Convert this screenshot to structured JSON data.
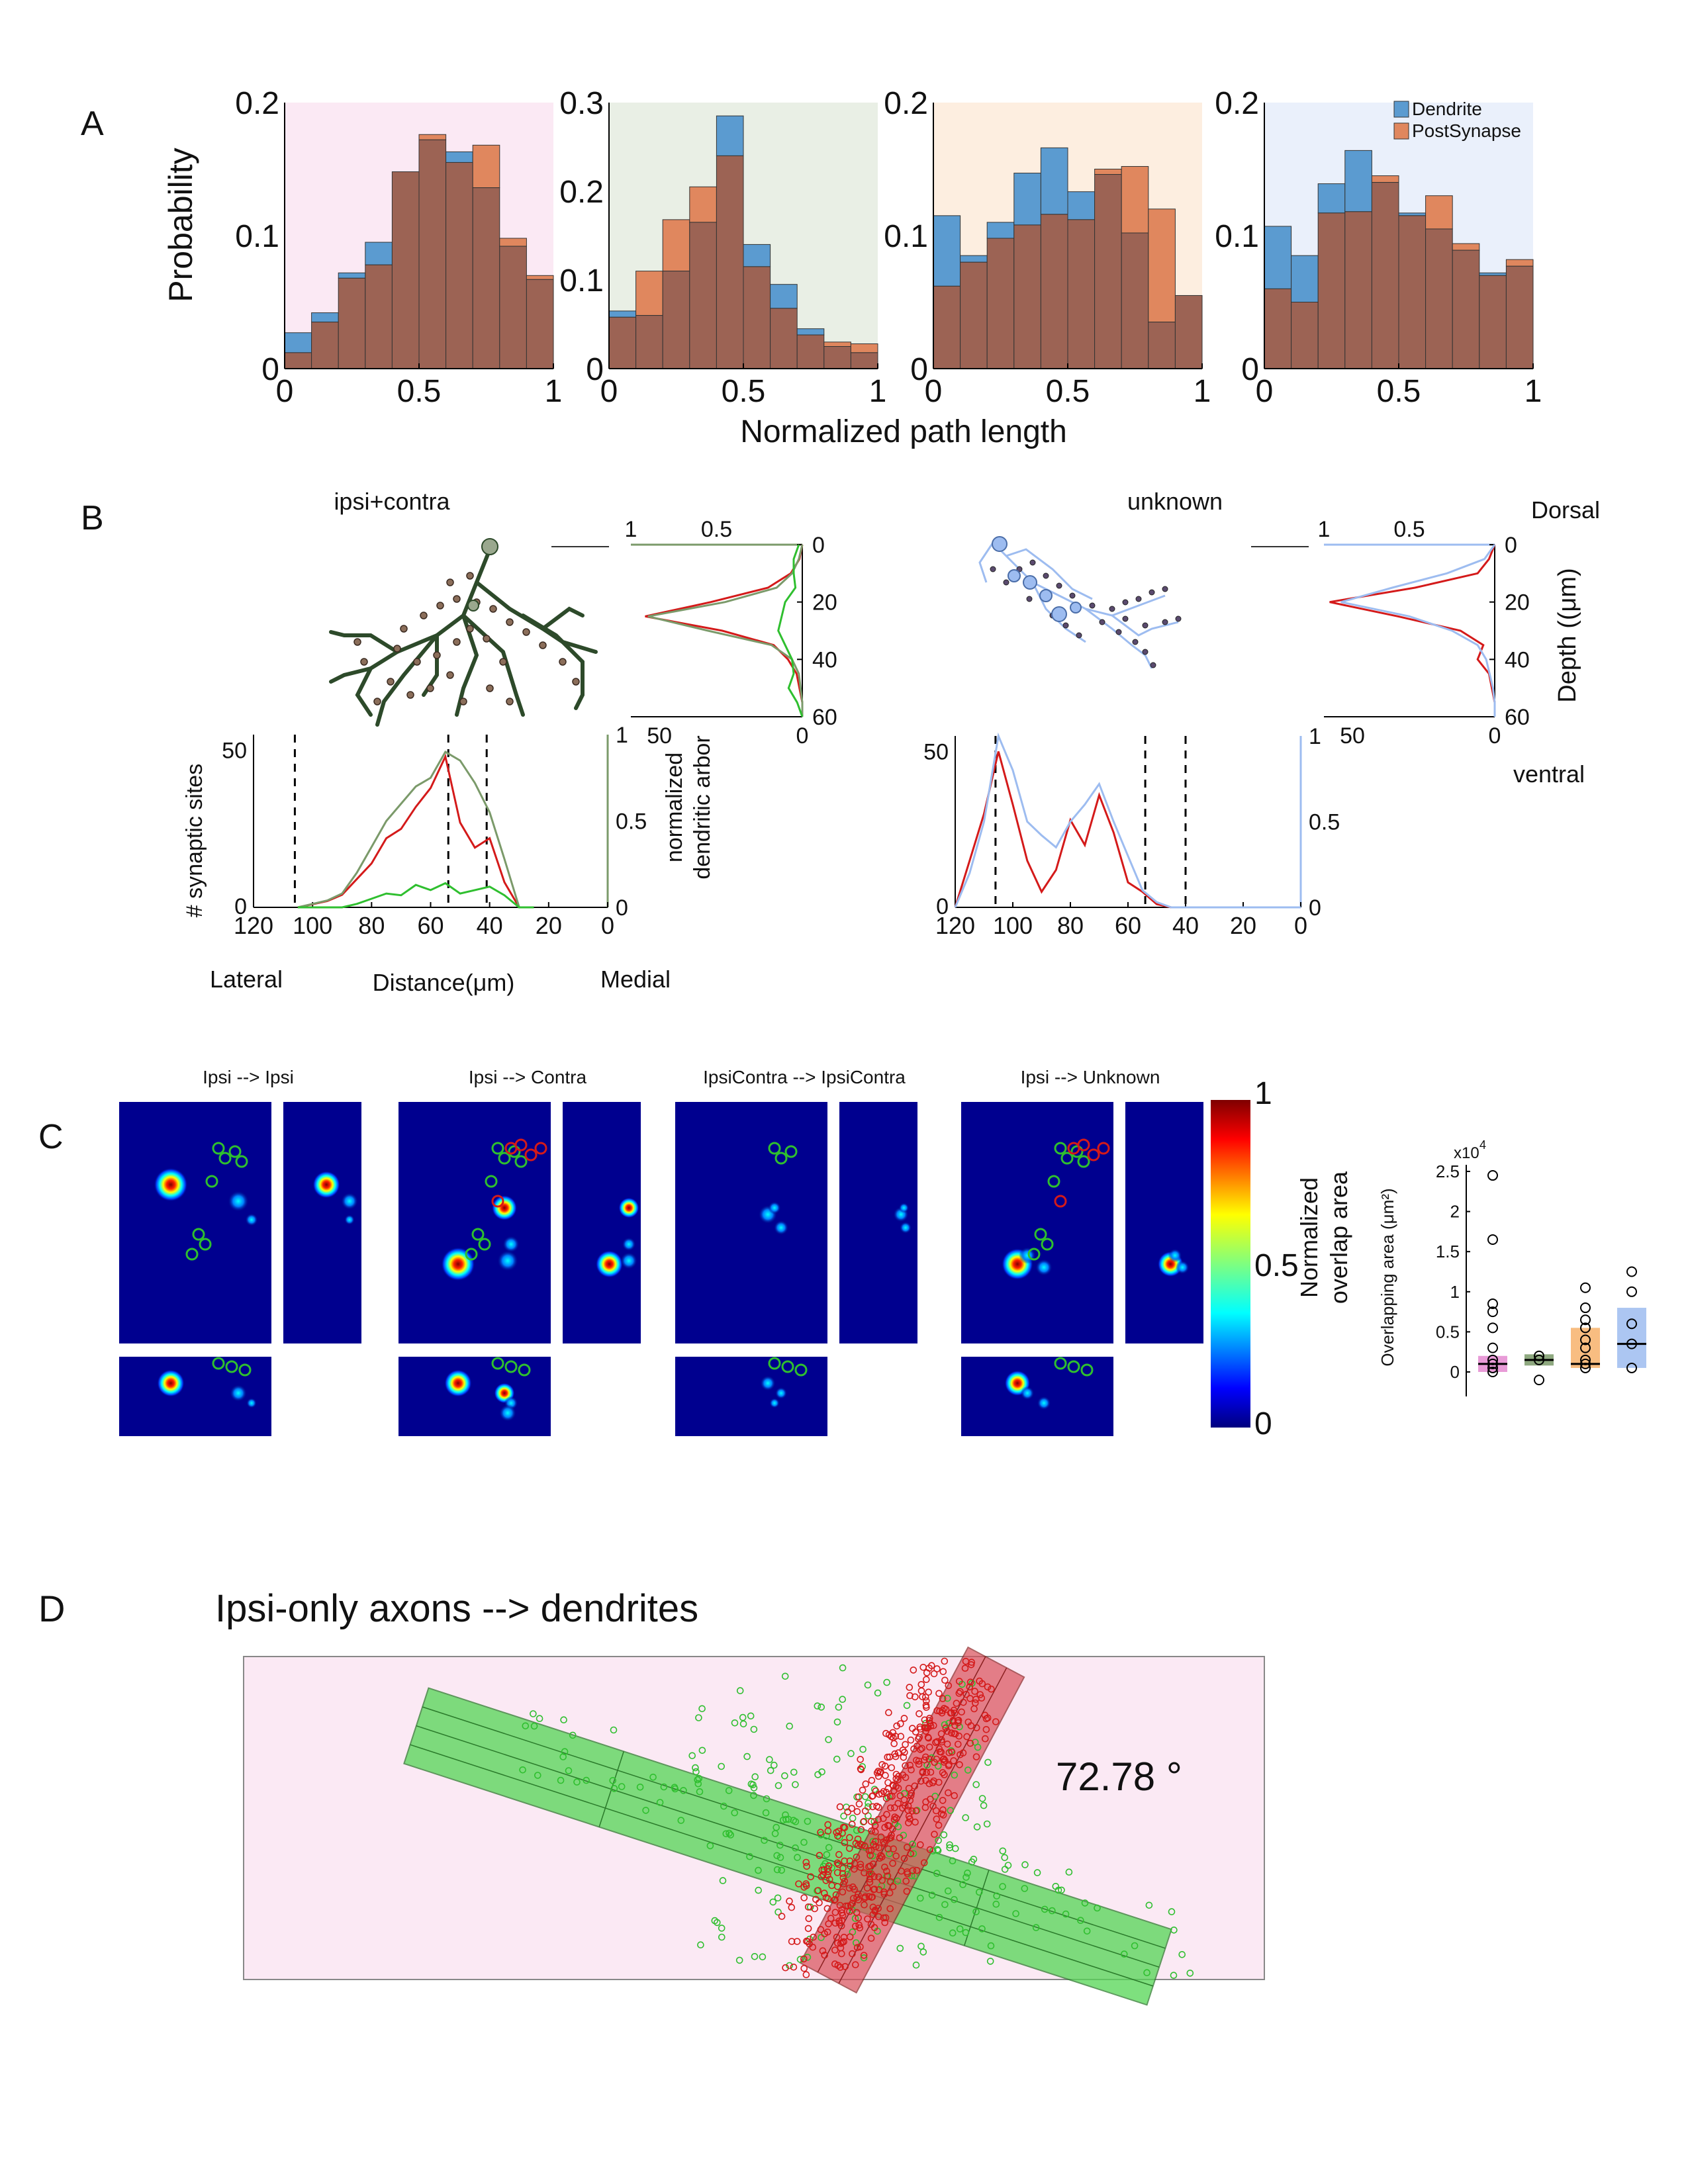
{
  "colors": {
    "dendrite": "#5b9bd0",
    "postsynapse": "#e0875e",
    "overlap": "#9c6354",
    "bg_pink": "#fbe9f4",
    "bg_green": "#e9efe5",
    "bg_orange": "#fdeee0",
    "bg_blue": "#eaf0fb",
    "red": "#d41a1a",
    "green": "#2fbf2f",
    "lightblue": "#9dbcf0",
    "olive": "#7b9a6a"
  },
  "panelA": {
    "label": "A",
    "ylabel": "Probability",
    "xlabel": "Normalized path length",
    "legend": [
      "Dendrite",
      "PostSynapse"
    ]
  },
  "panelB": {
    "label": "B",
    "left_title": "ipsi+contra",
    "right_title": "unknown",
    "dorsal": "Dorsal",
    "ventral": "ventral",
    "depth_label": "Depth ((μm)",
    "ylabel_left": "# synaptic sites",
    "ylabel_right_1": "normalized",
    "ylabel_right_2": "dendritic arbor",
    "lateral": "Lateral",
    "medial": "Medial",
    "distance": "Distance(μm)"
  },
  "panelC": {
    "label": "C",
    "titles": [
      "Ipsi --> Ipsi",
      "Ipsi --> Contra",
      "IpsiContra --> IpsiContra",
      "Ipsi -->  Unknown"
    ],
    "colorbar_label_1": "Normalized",
    "colorbar_label_2": "overlap area",
    "colorbar_ticks": [
      "1",
      "0.5",
      "0"
    ],
    "box_ylabel": "Overlapping area (μm²)",
    "box_multiplier": "x10",
    "box_exponent": "4",
    "box_ticks": [
      "2.5",
      "2",
      "1.5",
      "1",
      "0.5",
      "0"
    ]
  },
  "panelD": {
    "label": "D",
    "title": "Ipsi-only axons --> dendrites",
    "angle": "72.78 °"
  },
  "chart_data": [
    {
      "type": "bar",
      "panel": "A1",
      "x": [
        0.05,
        0.15,
        0.25,
        0.35,
        0.45,
        0.55,
        0.65,
        0.75,
        0.85,
        0.95
      ],
      "series": [
        {
          "name": "Dendrite",
          "values": [
            0.027,
            0.042,
            0.072,
            0.095,
            0.148,
            0.172,
            0.163,
            0.136,
            0.092,
            0.067
          ]
        },
        {
          "name": "PostSynapse",
          "values": [
            0.012,
            0.035,
            0.068,
            0.078,
            0.148,
            0.176,
            0.155,
            0.168,
            0.098,
            0.07
          ]
        }
      ],
      "xlim": [
        0,
        1
      ],
      "ylim": [
        0,
        0.2
      ],
      "xticks": [
        "0",
        "0.5",
        "1"
      ],
      "yticks": [
        "0",
        "0.1",
        "0.2"
      ],
      "bg": "#fbe9f4"
    },
    {
      "type": "bar",
      "panel": "A2",
      "x": [
        0.05,
        0.15,
        0.25,
        0.35,
        0.45,
        0.55,
        0.65,
        0.75,
        0.85,
        0.95
      ],
      "series": [
        {
          "name": "Dendrite",
          "values": [
            0.065,
            0.06,
            0.11,
            0.165,
            0.285,
            0.14,
            0.095,
            0.045,
            0.025,
            0.018
          ]
        },
        {
          "name": "PostSynapse",
          "values": [
            0.058,
            0.11,
            0.168,
            0.205,
            0.24,
            0.115,
            0.068,
            0.038,
            0.03,
            0.028
          ]
        }
      ],
      "xlim": [
        0,
        1
      ],
      "ylim": [
        0,
        0.3
      ],
      "xticks": [
        "0",
        "0.5",
        "1"
      ],
      "yticks": [
        "0",
        "0.1",
        "0.2",
        "0.3"
      ],
      "bg": "#e9efe5"
    },
    {
      "type": "bar",
      "panel": "A3",
      "x": [
        0.05,
        0.15,
        0.25,
        0.35,
        0.45,
        0.55,
        0.65,
        0.75,
        0.85,
        0.95
      ],
      "series": [
        {
          "name": "Dendrite",
          "values": [
            0.115,
            0.085,
            0.11,
            0.147,
            0.166,
            0.133,
            0.146,
            0.102,
            0.035,
            0.055
          ]
        },
        {
          "name": "PostSynapse",
          "values": [
            0.062,
            0.08,
            0.098,
            0.108,
            0.116,
            0.112,
            0.15,
            0.152,
            0.12,
            0.055
          ]
        }
      ],
      "xlim": [
        0,
        1
      ],
      "ylim": [
        0,
        0.2
      ],
      "xticks": [
        "0",
        "0.5",
        "1"
      ],
      "yticks": [
        "0",
        "0.1",
        "0.2"
      ],
      "bg": "#fdeee0"
    },
    {
      "type": "bar",
      "panel": "A4",
      "x": [
        0.05,
        0.15,
        0.25,
        0.35,
        0.45,
        0.55,
        0.65,
        0.75,
        0.85,
        0.95
      ],
      "series": [
        {
          "name": "Dendrite",
          "values": [
            0.107,
            0.085,
            0.139,
            0.164,
            0.14,
            0.117,
            0.105,
            0.089,
            0.072,
            0.077
          ]
        },
        {
          "name": "PostSynapse",
          "values": [
            0.06,
            0.05,
            0.117,
            0.118,
            0.145,
            0.115,
            0.13,
            0.094,
            0.07,
            0.082
          ]
        }
      ],
      "xlim": [
        0,
        1
      ],
      "ylim": [
        0,
        0.2
      ],
      "xticks": [
        "0",
        "0.5",
        "1"
      ],
      "yticks": [
        "0",
        "0.1",
        "0.2"
      ],
      "bg": "#eaf0fb"
    },
    {
      "type": "line",
      "panel": "B-left-distance",
      "x": [
        105,
        100,
        95,
        90,
        85,
        80,
        75,
        70,
        65,
        60,
        55,
        50,
        45,
        40,
        35,
        30,
        25
      ],
      "series": [
        {
          "color": "red",
          "values": [
            0,
            1,
            2,
            4,
            9,
            14,
            22,
            25,
            32,
            38,
            48,
            27,
            19,
            22,
            8,
            0,
            0
          ]
        },
        {
          "color": "olive",
          "values": [
            0,
            0.02,
            0.04,
            0.08,
            0.2,
            0.35,
            0.5,
            0.6,
            0.7,
            0.75,
            0.9,
            0.85,
            0.72,
            0.55,
            0.28,
            0,
            0
          ]
        },
        {
          "color": "green",
          "values": [
            0,
            0,
            0,
            0,
            0.02,
            0.05,
            0.08,
            0.07,
            0.13,
            0.1,
            0.14,
            0.08,
            0.1,
            0.12,
            0.07,
            0,
            0
          ]
        }
      ],
      "xlim": [
        120,
        0
      ],
      "ylim": [
        0,
        55
      ],
      "xticks": [
        "120",
        "100",
        "80",
        "60",
        "40",
        "20",
        "0"
      ],
      "yticks_left": [
        "0",
        "50"
      ],
      "yticks_right": [
        "0",
        "0.5",
        "1"
      ],
      "dashed_x": [
        106,
        54,
        41
      ]
    },
    {
      "type": "line",
      "panel": "B-right-distance",
      "x": [
        120,
        115,
        110,
        105,
        100,
        95,
        90,
        85,
        80,
        75,
        70,
        65,
        60,
        55,
        50,
        45,
        40,
        30,
        20,
        10,
        0
      ],
      "series": [
        {
          "color": "red",
          "values": [
            0,
            15,
            30,
            50,
            33,
            15,
            5,
            12,
            28,
            20,
            36,
            24,
            8,
            5,
            1,
            0,
            0,
            0,
            0,
            0,
            0
          ]
        },
        {
          "color": "lightblue",
          "values": [
            0,
            0.2,
            0.5,
            1.0,
            0.8,
            0.5,
            0.42,
            0.35,
            0.5,
            0.6,
            0.72,
            0.5,
            0.3,
            0.1,
            0.03,
            0,
            0,
            0,
            0,
            0,
            0
          ]
        }
      ],
      "xlim": [
        120,
        0
      ],
      "ylim": [
        0,
        50
      ],
      "xticks": [
        "120",
        "100",
        "80",
        "60",
        "40",
        "20",
        "0"
      ],
      "yticks_left": [
        "0",
        "50"
      ],
      "yticks_right": [
        "0",
        "0.5",
        "1"
      ],
      "dashed_x": [
        106,
        54,
        40
      ]
    },
    {
      "type": "line",
      "panel": "B-left-depth",
      "depth": [
        0,
        5,
        10,
        15,
        20,
        25,
        30,
        35,
        40,
        45,
        50,
        55,
        60
      ],
      "series": [
        {
          "color": "red",
          "values": [
            0,
            1,
            4,
            12,
            32,
            55,
            28,
            10,
            5,
            2,
            1,
            0,
            0
          ]
        },
        {
          "color": "olive",
          "values": [
            0,
            0.02,
            0.06,
            0.15,
            0.45,
            0.9,
            0.55,
            0.18,
            0.06,
            0.02,
            0.01,
            0,
            0
          ]
        },
        {
          "color": "green",
          "values": [
            0.02,
            0.05,
            0.05,
            0.04,
            0.1,
            0.12,
            0.14,
            0.1,
            0.06,
            0.05,
            0.08,
            0.03,
            0
          ]
        }
      ],
      "top_ticks": [
        "1",
        "0.5"
      ],
      "bottom_ticks": [
        "50",
        "0"
      ],
      "depth_ticks": [
        "0",
        "20",
        "40",
        "60"
      ]
    },
    {
      "type": "line",
      "panel": "B-right-depth",
      "depth": [
        0,
        5,
        10,
        15,
        20,
        25,
        30,
        35,
        40,
        45,
        50,
        55,
        60
      ],
      "series": [
        {
          "color": "red",
          "values": [
            0,
            2,
            6,
            28,
            58,
            34,
            12,
            4,
            6,
            2,
            1,
            0,
            0
          ]
        },
        {
          "color": "lightblue",
          "values": [
            0,
            0.06,
            0.28,
            0.6,
            0.9,
            0.5,
            0.25,
            0.1,
            0.05,
            0.03,
            0.01,
            0,
            0
          ]
        }
      ],
      "top_ticks": [
        "1",
        "0.5"
      ],
      "bottom_ticks": [
        "50",
        "0"
      ],
      "depth_ticks": [
        "0",
        "20",
        "40",
        "60"
      ]
    },
    {
      "type": "scatter",
      "panel": "C-box",
      "groups": [
        {
          "color": "pink",
          "median": 0.1,
          "q1": 0.0,
          "q3": 0.2,
          "points": [
            2.45,
            1.65,
            0.85,
            0.75,
            0.55,
            0.3,
            0.15,
            0.1,
            0.05,
            0.0
          ]
        },
        {
          "color": "green",
          "median": 0.15,
          "q1": 0.08,
          "q3": 0.22,
          "points": [
            0.2,
            0.15,
            -0.1
          ]
        },
        {
          "color": "orange",
          "median": 0.1,
          "q1": 0.05,
          "q3": 0.55,
          "points": [
            1.05,
            0.8,
            0.65,
            0.55,
            0.4,
            0.3,
            0.15,
            0.1,
            0.05
          ]
        },
        {
          "color": "blue",
          "median": 0.35,
          "q1": 0.05,
          "q3": 0.8,
          "points": [
            1.25,
            1.0,
            0.6,
            0.35,
            0.05
          ]
        }
      ],
      "ylim": [
        0,
        2.5
      ]
    }
  ]
}
